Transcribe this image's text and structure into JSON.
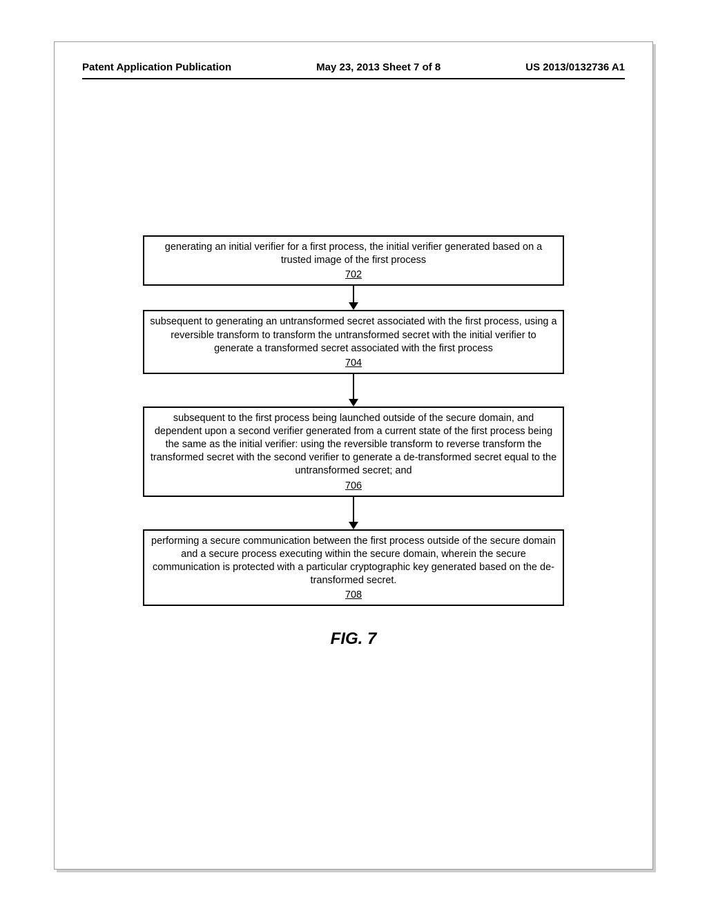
{
  "header": {
    "left": "Patent Application Publication",
    "center": "May 23, 2013  Sheet 7 of 8",
    "right": "US 2013/0132736 A1"
  },
  "flowchart": {
    "type": "flowchart",
    "box_border_color": "#000000",
    "box_border_width": 2,
    "arrow_color": "#000000",
    "font_size": 14.5,
    "ref_underline": true,
    "steps": [
      {
        "text": "generating an initial verifier for a first process, the initial verifier generated based on a trusted image of the first process",
        "ref": "702",
        "arrow_height": 24
      },
      {
        "text": "subsequent to generating an untransformed secret associated with the first process, using a reversible transform to transform the untransformed secret with the initial verifier to generate a transformed secret associated with the first process",
        "ref": "704",
        "arrow_height": 36
      },
      {
        "text": "subsequent to the first process being launched outside of the secure domain, and dependent upon a second verifier generated from a current state of the first process being the same as the initial verifier: using the reversible transform to reverse transform the transformed secret with the second verifier to generate a de-transformed secret equal to the untransformed secret; and",
        "ref": "706",
        "arrow_height": 36
      },
      {
        "text": "performing a secure communication between the first process outside of the secure domain and a secure process executing within the secure domain, wherein the secure communication is protected with a particular cryptographic key generated based on the de-transformed secret.",
        "ref": "708",
        "arrow_height": 0
      }
    ]
  },
  "figure_label": "FIG. 7"
}
